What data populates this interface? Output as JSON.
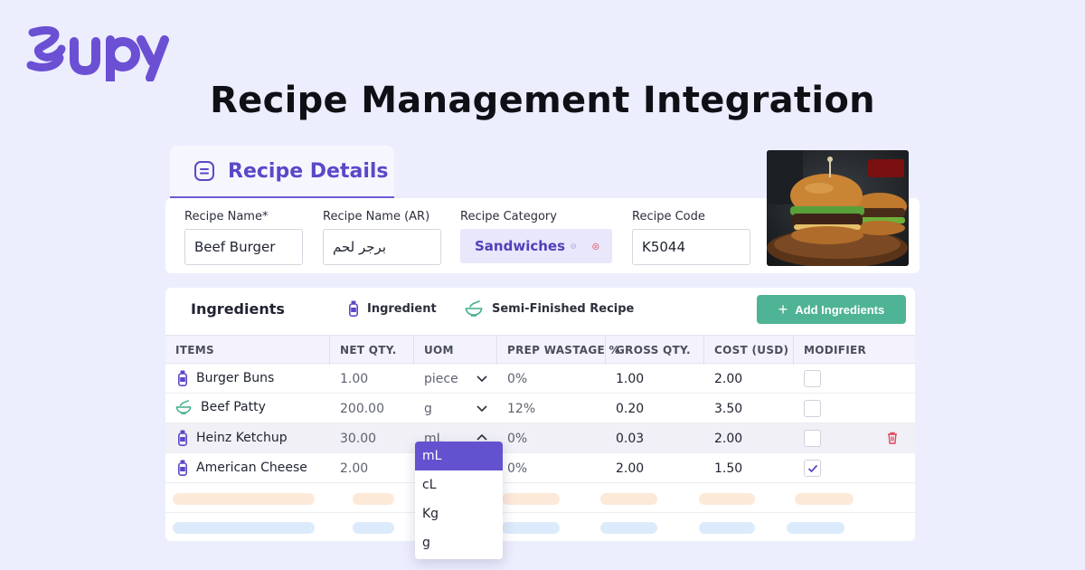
{
  "brand": {
    "logo_text": "supy",
    "color": "#6b50d4"
  },
  "headline": "Recipe Management Integration",
  "tab": {
    "label": "Recipe Details",
    "icon": "list-square-icon"
  },
  "details": {
    "name_label": "Recipe Name*",
    "name_value": "Beef Burger",
    "name_ar_label": "Recipe Name (AR)",
    "name_ar_value": "برجر لحم",
    "category_label": "Recipe Category",
    "category_value": "Sandwiches",
    "code_label": "Recipe Code",
    "code_value": "K5044"
  },
  "ingredients": {
    "title": "Ingredients",
    "legend_ingredient": "Ingredient",
    "legend_semi": "Semi-Finished Recipe",
    "add_button": "Add Ingredients",
    "columns": [
      "ITEMS",
      "NET QTY.",
      "UOM",
      "PREP WASTAGE %",
      "GROSS QTY.",
      "COST (USD)",
      "MODIFIER"
    ],
    "rows": [
      {
        "item": "Burger Buns",
        "type": "ingredient",
        "net": "1.00",
        "uom": "piece",
        "wastage": "0%",
        "gross": "1.00",
        "cost": "2.00",
        "modifier": false
      },
      {
        "item": "Beef Patty",
        "type": "semi",
        "net": "200.00",
        "uom": "g",
        "wastage": "12%",
        "gross": "0.20",
        "cost": "3.50",
        "modifier": false
      },
      {
        "item": "Heinz Ketchup",
        "type": "ingredient",
        "net": "30.00",
        "uom": "mL",
        "wastage": "0%",
        "gross": "0.03",
        "cost": "2.00",
        "modifier": false
      },
      {
        "item": "American Cheese",
        "type": "ingredient",
        "net": "2.00",
        "uom": "",
        "wastage": "0%",
        "gross": "2.00",
        "cost": "1.50",
        "modifier": true
      }
    ]
  },
  "uom_dropdown": {
    "options": [
      "mL",
      "cL",
      "Kg",
      "g"
    ],
    "selected": "mL"
  },
  "colors": {
    "accent": "#6352cf",
    "green": "#4fb395",
    "danger": "#e0475a"
  }
}
